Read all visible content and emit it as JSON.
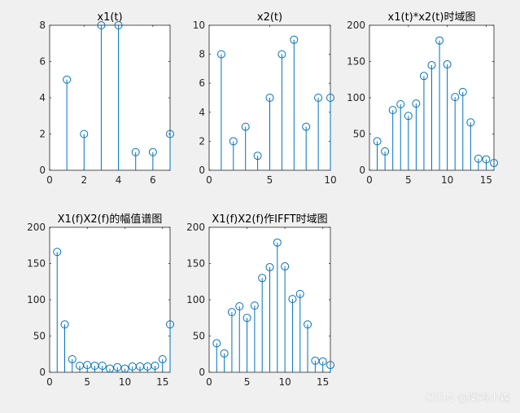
{
  "watermark": "CSDN @菜鸡小森",
  "chart_data": [
    {
      "type": "stem",
      "title": "x1(t)",
      "x": [
        1,
        2,
        3,
        4,
        5,
        6,
        7
      ],
      "values": [
        5,
        2,
        8,
        8,
        1,
        1,
        2
      ],
      "xlim": [
        0,
        7
      ],
      "ylim": [
        0,
        8
      ],
      "xticks": [
        0,
        2,
        4,
        6
      ],
      "yticks": [
        0,
        2,
        4,
        6,
        8
      ],
      "xlabel": "",
      "ylabel": "",
      "color": "#0072bd"
    },
    {
      "type": "stem",
      "title": "x2(t)",
      "x": [
        1,
        2,
        3,
        4,
        5,
        6,
        7,
        8,
        9,
        10
      ],
      "values": [
        8,
        2,
        3,
        1,
        5,
        8,
        9,
        3,
        5,
        5
      ],
      "xlim": [
        0,
        10
      ],
      "ylim": [
        0,
        10
      ],
      "xticks": [
        0,
        5,
        10
      ],
      "yticks": [
        0,
        2,
        4,
        6,
        8,
        10
      ],
      "xlabel": "",
      "ylabel": "",
      "color": "#0072bd"
    },
    {
      "type": "stem",
      "title": "x1(t)*x2(t)时域图",
      "x": [
        1,
        2,
        3,
        4,
        5,
        6,
        7,
        8,
        9,
        10,
        11,
        12,
        13,
        14,
        15,
        16
      ],
      "values": [
        40,
        26,
        83,
        91,
        75,
        92,
        130,
        145,
        179,
        146,
        101,
        108,
        66,
        16,
        15,
        10
      ],
      "xlim": [
        0,
        16
      ],
      "ylim": [
        0,
        200
      ],
      "xticks": [
        0,
        5,
        10,
        15
      ],
      "yticks": [
        0,
        50,
        100,
        150,
        200
      ],
      "xlabel": "",
      "ylabel": "",
      "color": "#0072bd"
    },
    {
      "type": "stem",
      "title": "X1(f)X2(f)的幅值谱图",
      "x": [
        1,
        2,
        3,
        4,
        5,
        6,
        7,
        8,
        9,
        10,
        11,
        12,
        13,
        14,
        15,
        16
      ],
      "values": [
        166,
        66,
        18,
        9,
        10,
        9,
        9,
        5,
        7,
        5,
        8,
        8,
        8,
        9,
        18,
        66
      ],
      "xlim": [
        0,
        16
      ],
      "ylim": [
        0,
        200
      ],
      "xticks": [
        0,
        5,
        10,
        15
      ],
      "yticks": [
        0,
        50,
        100,
        150,
        200
      ],
      "xlabel": "",
      "ylabel": "",
      "color": "#0072bd"
    },
    {
      "type": "stem",
      "title": "X1(f)X2(f)作IFFT时域图",
      "x": [
        1,
        2,
        3,
        4,
        5,
        6,
        7,
        8,
        9,
        10,
        11,
        12,
        13,
        14,
        15,
        16
      ],
      "values": [
        40,
        26,
        83,
        91,
        75,
        92,
        130,
        145,
        179,
        146,
        101,
        108,
        66,
        16,
        15,
        10
      ],
      "xlim": [
        0,
        16
      ],
      "ylim": [
        0,
        200
      ],
      "xticks": [
        0,
        5,
        10,
        15
      ],
      "yticks": [
        0,
        50,
        100,
        150,
        200
      ],
      "xlabel": "",
      "ylabel": "",
      "color": "#0072bd"
    }
  ]
}
